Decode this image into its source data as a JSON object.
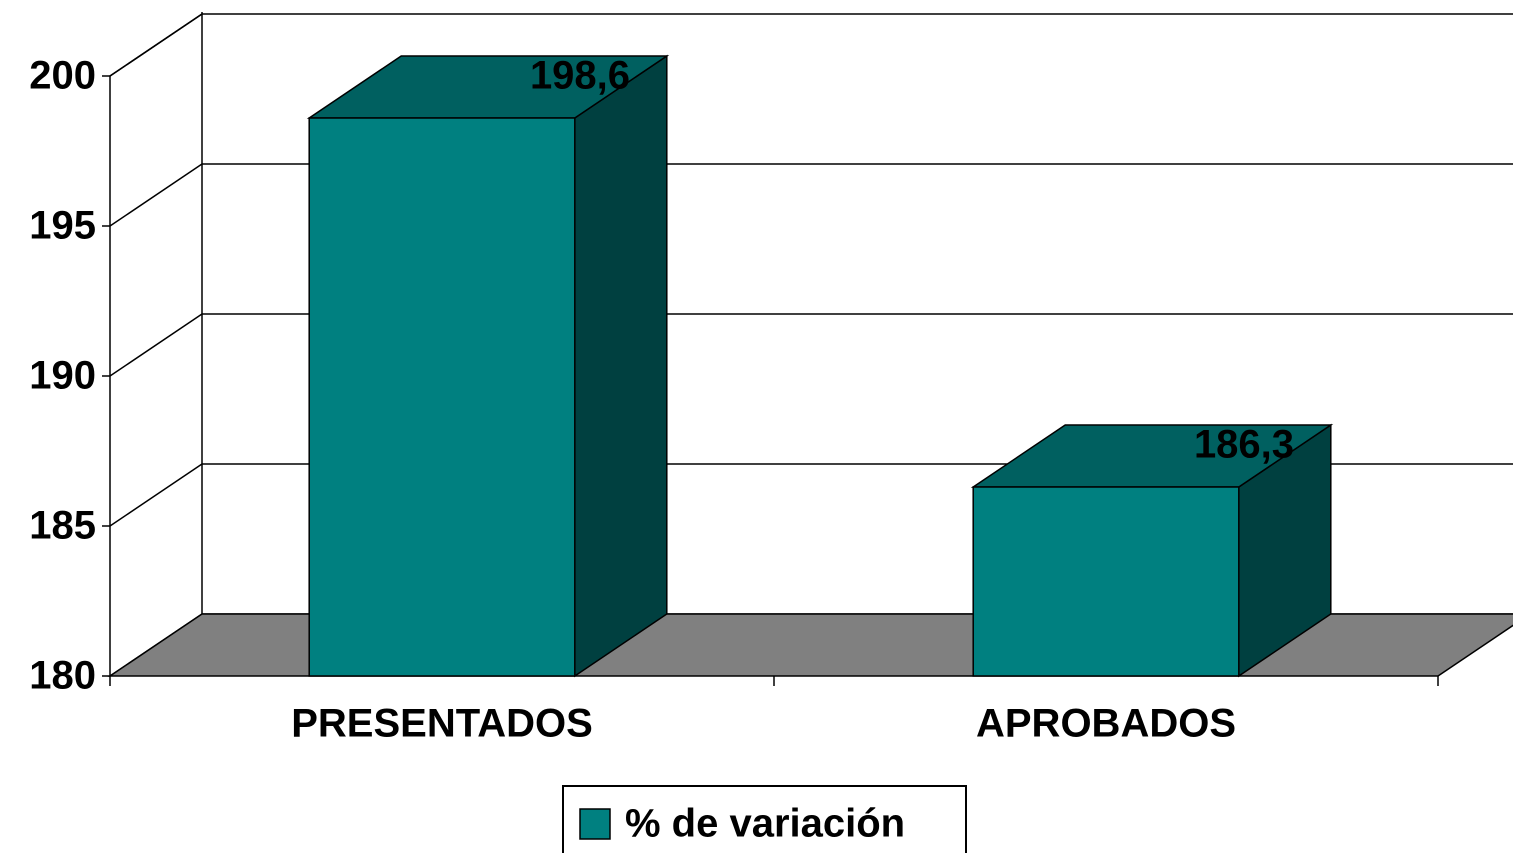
{
  "chart_data": {
    "type": "bar3d",
    "categories": [
      "PRESENTADOS",
      "APROBADOS"
    ],
    "series": [
      {
        "name": "% de variación",
        "color": "#008080",
        "values": [
          198.6,
          186.3
        ],
        "value_labels": [
          "198,6",
          "186,3"
        ]
      }
    ],
    "ylim": [
      180,
      200
    ],
    "yticks": [
      180,
      185,
      190,
      195,
      200
    ],
    "grid": true,
    "legend": "bottom"
  }
}
